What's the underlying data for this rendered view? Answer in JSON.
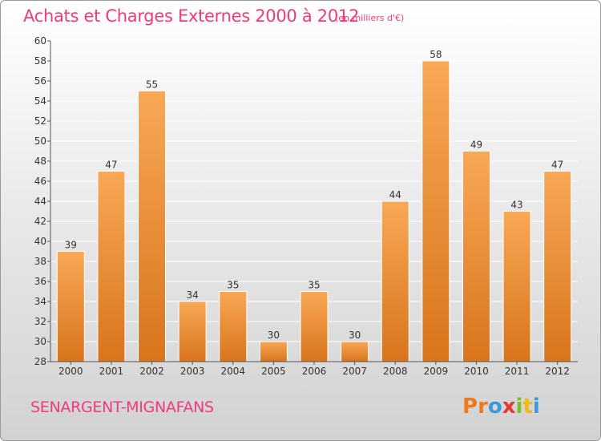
{
  "header": {
    "title": "Achats et Charges Externes 2000 à 2012",
    "subtitle": "(en milliers d'€)"
  },
  "footer": {
    "commune": "SENARGENT-MIGNAFANS",
    "logo_letters": [
      {
        "char": "P",
        "color": "#f07a1a"
      },
      {
        "char": "r",
        "color": "#f07a1a"
      },
      {
        "char": "o",
        "color": "#3a9ad9"
      },
      {
        "char": "x",
        "color": "#e43a2f"
      },
      {
        "char": "i",
        "color": "#7bbf2a"
      },
      {
        "char": "t",
        "color": "#f0b91a"
      },
      {
        "char": "i",
        "color": "#3a9ad9"
      }
    ]
  },
  "colors": {
    "accent": "#ef3b7d",
    "bar_light": "#f8a856",
    "bar_dark": "#d8741c",
    "grid": "#ffffff",
    "axis": "#555555"
  },
  "chart_data": {
    "type": "bar",
    "title": "Achats et Charges Externes 2000 à 2012",
    "subtitle": "(en milliers d'€)",
    "xlabel": "",
    "ylabel": "",
    "categories": [
      "2000",
      "2001",
      "2002",
      "2003",
      "2004",
      "2005",
      "2006",
      "2007",
      "2008",
      "2009",
      "2010",
      "2011",
      "2012"
    ],
    "values": [
      39,
      47,
      55,
      34,
      35,
      30,
      35,
      30,
      44,
      58,
      49,
      43,
      47
    ],
    "ylim": [
      28,
      60
    ],
    "yticks": [
      28,
      30,
      32,
      34,
      36,
      38,
      40,
      42,
      44,
      46,
      48,
      50,
      52,
      54,
      56,
      58,
      60
    ],
    "grid": true,
    "data_labels": true,
    "legend": "none"
  }
}
